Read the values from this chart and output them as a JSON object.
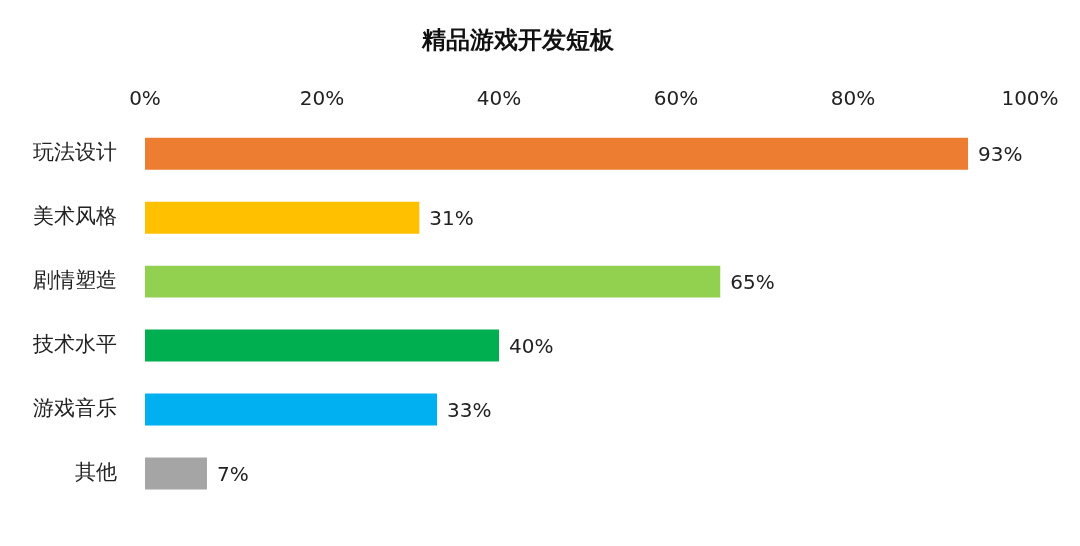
{
  "chart_data": {
    "type": "bar",
    "orientation": "horizontal",
    "title": "精品游戏开发短板",
    "categories": [
      "玩法设计",
      "美术风格",
      "剧情塑造",
      "技术水平",
      "游戏音乐",
      "其他"
    ],
    "values": [
      93,
      31,
      65,
      40,
      33,
      7
    ],
    "colors": [
      "#ed7d31",
      "#ffc000",
      "#92d050",
      "#00b050",
      "#00b0f0",
      "#a5a5a5"
    ],
    "value_labels": [
      "93%",
      "31%",
      "65%",
      "40%",
      "33%",
      "7%"
    ],
    "xlim": [
      0,
      100
    ],
    "xticks": [
      {
        "value": 0,
        "label": "0%"
      },
      {
        "value": 20,
        "label": "20%"
      },
      {
        "value": 40,
        "label": "40%"
      },
      {
        "value": 60,
        "label": "60%"
      },
      {
        "value": 80,
        "label": "80%"
      },
      {
        "value": 100,
        "label": "100%"
      }
    ],
    "legend": false
  }
}
